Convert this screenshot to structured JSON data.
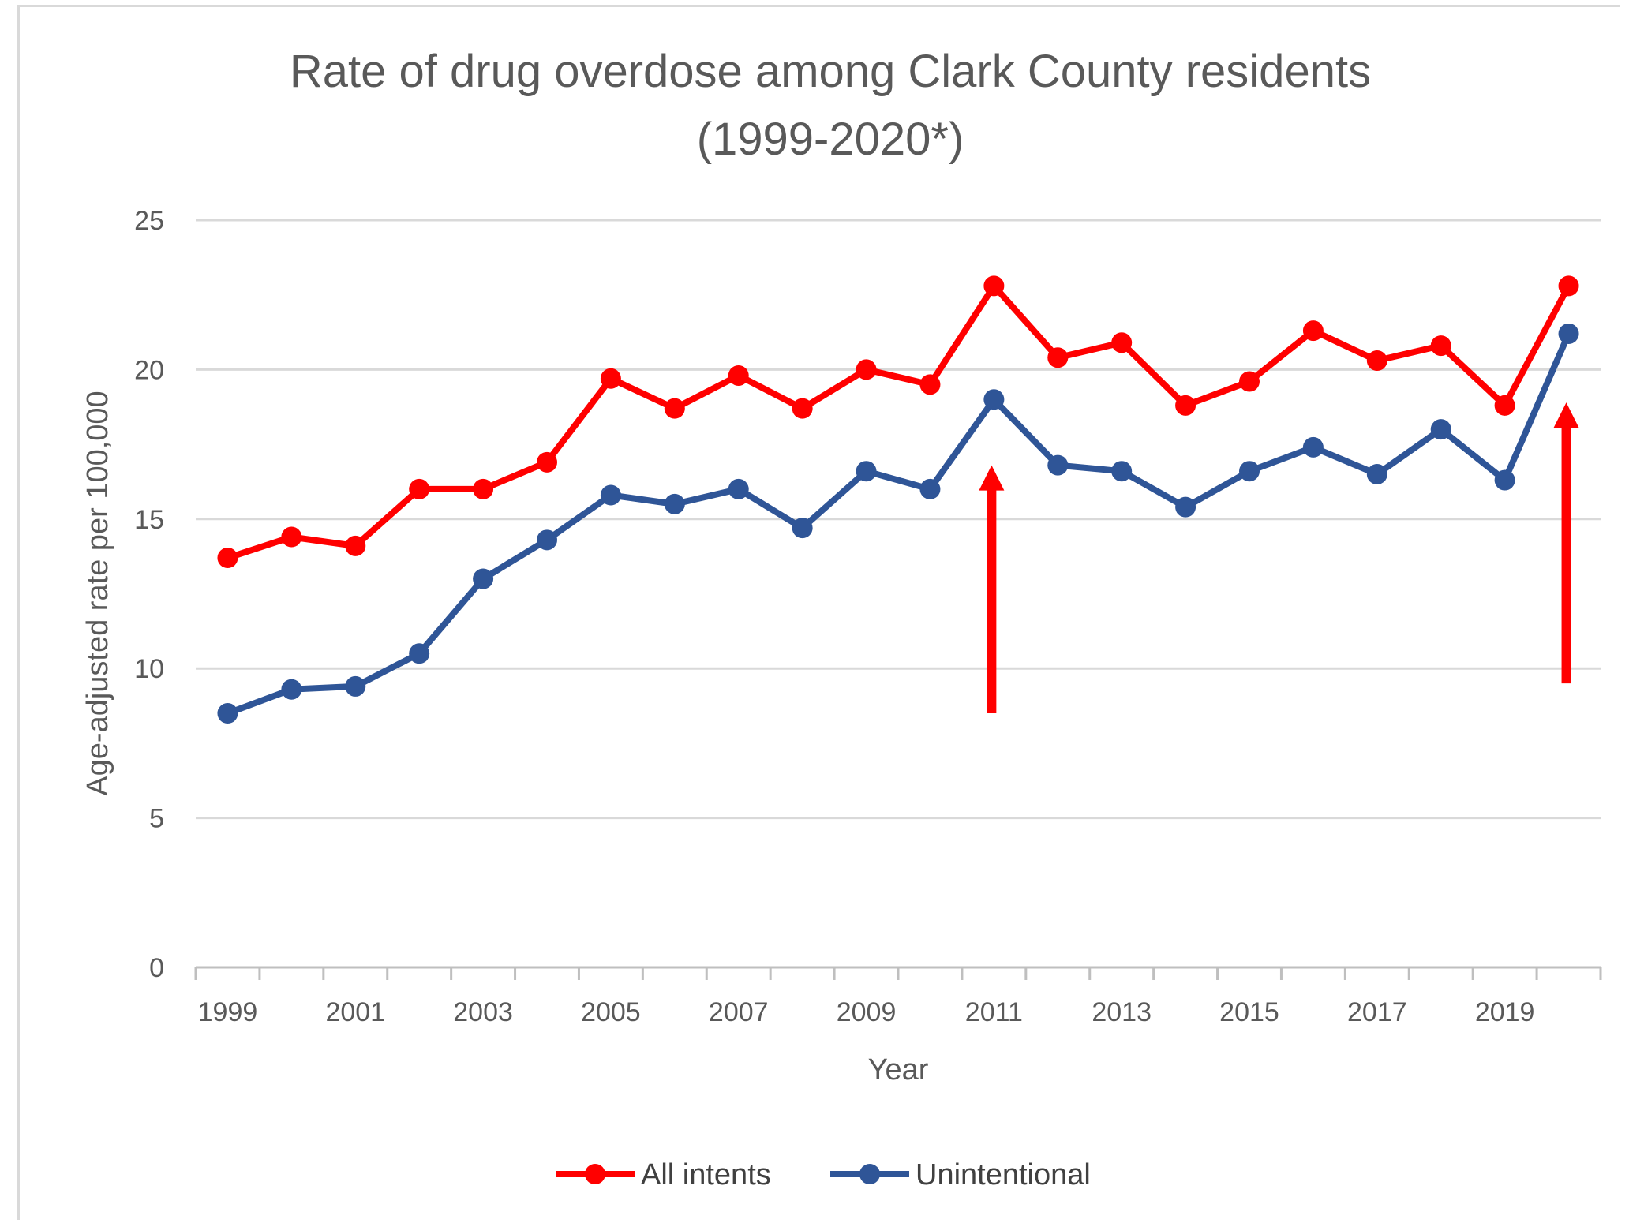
{
  "chart_data": {
    "type": "line",
    "title_line1": "Rate of drug overdose among Clark County residents",
    "title_line2": "(1999-2020*)",
    "xlabel": "Year",
    "ylabel": "Age-adjusted rate per 100,000",
    "ylim": [
      0,
      25
    ],
    "yticks": [
      0,
      5,
      10,
      15,
      20,
      25
    ],
    "grid": true,
    "legend_position": "bottom",
    "x": [
      1999,
      2000,
      2001,
      2002,
      2003,
      2004,
      2005,
      2006,
      2007,
      2008,
      2009,
      2010,
      2011,
      2012,
      2013,
      2014,
      2015,
      2016,
      2017,
      2018,
      2019,
      2020
    ],
    "xtick_labels": [
      "1999",
      "2001",
      "2003",
      "2005",
      "2007",
      "2009",
      "2011",
      "2013",
      "2015",
      "2017",
      "2019"
    ],
    "series": [
      {
        "name": "All intents",
        "color": "#ff0000",
        "values": [
          13.7,
          14.4,
          14.1,
          16.0,
          16.0,
          16.9,
          19.7,
          18.7,
          19.8,
          18.7,
          20.0,
          19.5,
          22.8,
          20.4,
          20.9,
          18.8,
          19.6,
          21.3,
          20.3,
          20.8,
          18.8,
          22.8
        ]
      },
      {
        "name": "Unintentional",
        "color": "#2f5597",
        "values": [
          8.5,
          9.3,
          9.4,
          10.5,
          13.0,
          14.3,
          15.8,
          15.5,
          16.0,
          14.7,
          16.6,
          16.0,
          19.0,
          16.8,
          16.6,
          15.4,
          16.6,
          17.4,
          16.5,
          18.0,
          16.3,
          21.2
        ]
      }
    ],
    "annotations": [
      {
        "type": "arrow",
        "color": "#ff0000",
        "x": 2011,
        "y_from": 8.5,
        "y_to": 16.8
      },
      {
        "type": "arrow",
        "color": "#ff0000",
        "x": 2020,
        "y_from": 9.5,
        "y_to": 18.9
      }
    ]
  }
}
